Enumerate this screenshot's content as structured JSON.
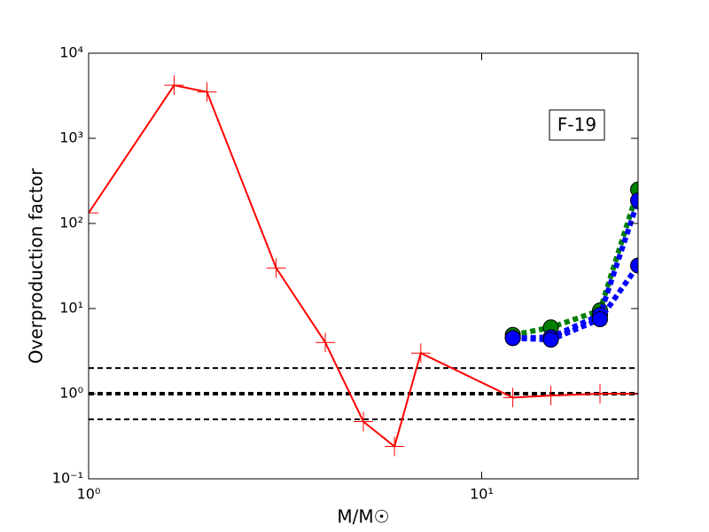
{
  "chart_data": {
    "type": "line",
    "xlabel": "M/M☉",
    "ylabel": "Overproduction factor",
    "annotation": "F-19",
    "xlog": true,
    "ylog": true,
    "xlim": [
      1,
      25
    ],
    "ylim": [
      0.1,
      10000
    ],
    "xticks": [
      {
        "value": 1,
        "label": "10⁰"
      },
      {
        "value": 10,
        "label": "10¹"
      }
    ],
    "yticks": [
      {
        "value": 0.1,
        "label": "10⁻¹"
      },
      {
        "value": 1,
        "label": "10⁰"
      },
      {
        "value": 10,
        "label": "10¹"
      },
      {
        "value": 100,
        "label": "10²"
      },
      {
        "value": 1000,
        "label": "10³"
      },
      {
        "value": 10000,
        "label": "10⁴"
      }
    ],
    "hlines": [
      {
        "value": 2,
        "color": "#000000",
        "width": 2
      },
      {
        "value": 1,
        "color": "#000000",
        "width": 4
      },
      {
        "value": 0.5,
        "color": "#000000",
        "width": 2
      }
    ],
    "series": [
      {
        "color": "#ff0000",
        "marker": "plus",
        "linestyle": "solid",
        "x": [
          1,
          1.65,
          2,
          3,
          4,
          5,
          6,
          7,
          12,
          15,
          20,
          25
        ],
        "values": [
          133,
          4200,
          3500,
          30,
          4,
          0.47,
          0.24,
          3,
          0.9,
          0.95,
          1,
          1
        ]
      },
      {
        "color": "#008000",
        "marker": "circle",
        "linestyle": "dotted",
        "x": [
          12,
          15,
          20,
          25
        ],
        "values": [
          4.9,
          6,
          9.5,
          250
        ]
      },
      {
        "color": "#0000ff",
        "marker": "circle",
        "linestyle": "dotted",
        "x": [
          12,
          15,
          20,
          25
        ],
        "values": [
          4.5,
          4.6,
          8.4,
          186
        ]
      },
      {
        "color": "#0000ff",
        "marker": "circle",
        "linestyle": "dotted",
        "x": [
          12,
          15,
          20,
          25
        ],
        "values": [
          4.5,
          4.3,
          7.5,
          32
        ]
      }
    ]
  }
}
